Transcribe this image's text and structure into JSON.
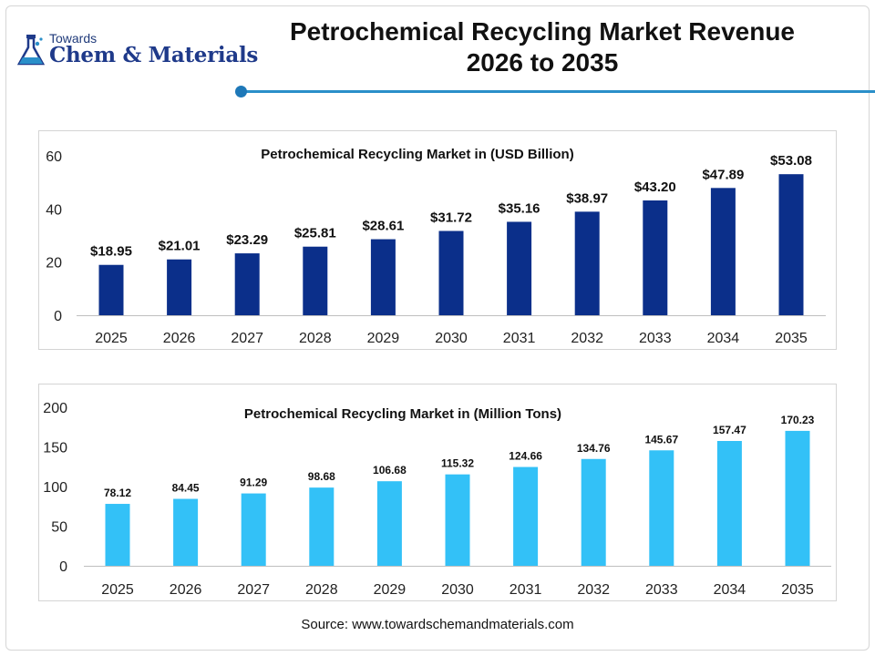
{
  "header": {
    "logo_top": "Towards",
    "logo_main": "Chem & Materials",
    "title_line1": "Petrochemical Recycling Market Revenue",
    "title_line2": "2026 to 2035"
  },
  "source": "Source: www.towardschemandmaterials.com",
  "colors": {
    "revenue_bar": "#0b2f8a",
    "volume_bar": "#33c1f7",
    "accent": "#2a8fc9"
  },
  "chart_data": [
    {
      "type": "bar",
      "title": "Petrochemical Recycling Market in (USD Billion)",
      "categories": [
        "2025",
        "2026",
        "2027",
        "2028",
        "2029",
        "2030",
        "2031",
        "2032",
        "2033",
        "2034",
        "2035"
      ],
      "values": [
        18.95,
        21.01,
        23.29,
        25.81,
        28.61,
        31.72,
        35.16,
        38.97,
        43.2,
        47.89,
        53.08
      ],
      "value_labels": [
        "$18.95",
        "$21.01",
        "$23.29",
        "$25.81",
        "$28.61",
        "$31.72",
        "$35.16",
        "$38.97",
        "$43.20",
        "$47.89",
        "$53.08"
      ],
      "yticks": [
        "0",
        "20",
        "40",
        "60"
      ],
      "ylim": [
        0,
        60
      ],
      "grid": false,
      "legend": "none"
    },
    {
      "type": "bar",
      "title": "Petrochemical Recycling Market in (Million Tons)",
      "categories": [
        "2025",
        "2026",
        "2027",
        "2028",
        "2029",
        "2030",
        "2031",
        "2032",
        "2033",
        "2034",
        "2035"
      ],
      "values": [
        78.12,
        84.45,
        91.29,
        98.68,
        106.68,
        115.32,
        124.66,
        134.76,
        145.67,
        157.47,
        170.23
      ],
      "value_labels": [
        "78.12",
        "84.45",
        "91.29",
        "98.68",
        "106.68",
        "115.32",
        "124.66",
        "134.76",
        "145.67",
        "157.47",
        "170.23"
      ],
      "yticks": [
        "0",
        "50",
        "100",
        "150",
        "200"
      ],
      "ylim": [
        0,
        200
      ],
      "grid": false,
      "legend": "none"
    }
  ]
}
